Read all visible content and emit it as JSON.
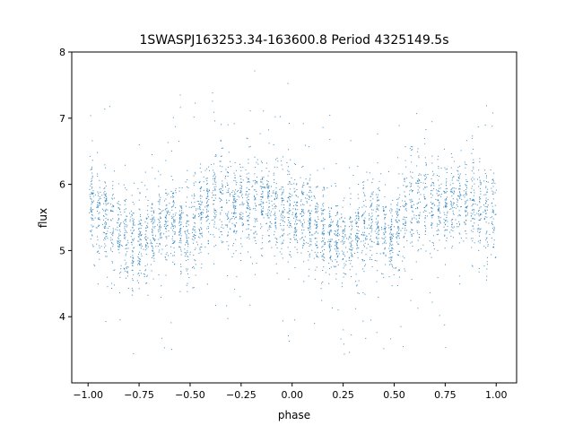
{
  "chart_data": {
    "type": "scatter",
    "title": "1SWASPJ163253.34-163600.8 Period 4325149.5s",
    "xlabel": "phase",
    "ylabel": "flux",
    "xlim": [
      -1.08,
      1.1
    ],
    "ylim": [
      3.0,
      8.0
    ],
    "xticks": [
      -1.0,
      -0.75,
      -0.5,
      -0.25,
      0.0,
      0.25,
      0.5,
      0.75,
      1.0
    ],
    "xtick_labels": [
      "−1.00",
      "−0.75",
      "−0.50",
      "−0.25",
      "0.00",
      "0.25",
      "0.50",
      "0.75",
      "1.00"
    ],
    "yticks": [
      4,
      5,
      6,
      7,
      8
    ],
    "ytick_labels": [
      "4",
      "5",
      "6",
      "7",
      "8"
    ],
    "grid": false,
    "point_color": "#1f77b4",
    "series": [
      {
        "baseline_curve": {
          "phase": [
            0.0,
            0.05,
            0.1,
            0.15,
            0.2,
            0.25,
            0.3,
            0.35,
            0.4,
            0.45,
            0.5,
            0.55,
            0.6,
            0.65,
            0.7,
            0.75,
            0.8,
            0.85,
            0.9,
            0.95,
            1.0
          ],
          "flux": [
            5.6,
            5.55,
            5.45,
            5.3,
            5.2,
            5.15,
            5.2,
            5.35,
            5.45,
            5.3,
            5.2,
            5.55,
            5.75,
            5.7,
            5.65,
            5.7,
            5.75,
            5.75,
            5.7,
            5.6,
            5.55
          ]
        },
        "scatter_sigma": 0.35,
        "phase_range": [
          -1.0,
          1.0
        ]
      }
    ]
  }
}
